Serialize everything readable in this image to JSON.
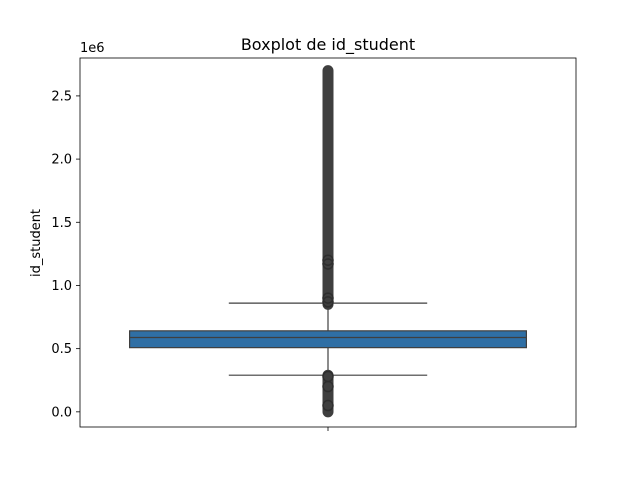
{
  "chart_data": {
    "type": "boxplot",
    "title": "Boxplot de id_student",
    "ylabel": "id_student",
    "xlabel": "",
    "offset_label": "1e6",
    "ylim": [
      -0.12,
      2.8
    ],
    "yticks": [
      0.0,
      0.5,
      1.0,
      1.5,
      2.0,
      2.5
    ],
    "ytick_labels": [
      "0.0",
      "0.5",
      "1.0",
      "1.5",
      "2.0",
      "2.5"
    ],
    "grid": false,
    "box_color": "#2f6fa5",
    "line_color": "#3f3f3f",
    "series": [
      {
        "q1": 0.508,
        "median": 0.588,
        "q3": 0.641,
        "whisker_low": 0.29,
        "whisker_high": 0.86,
        "outliers_low_range": [
          0.0,
          0.29
        ],
        "outliers_high_range": [
          0.85,
          2.7
        ]
      }
    ]
  }
}
